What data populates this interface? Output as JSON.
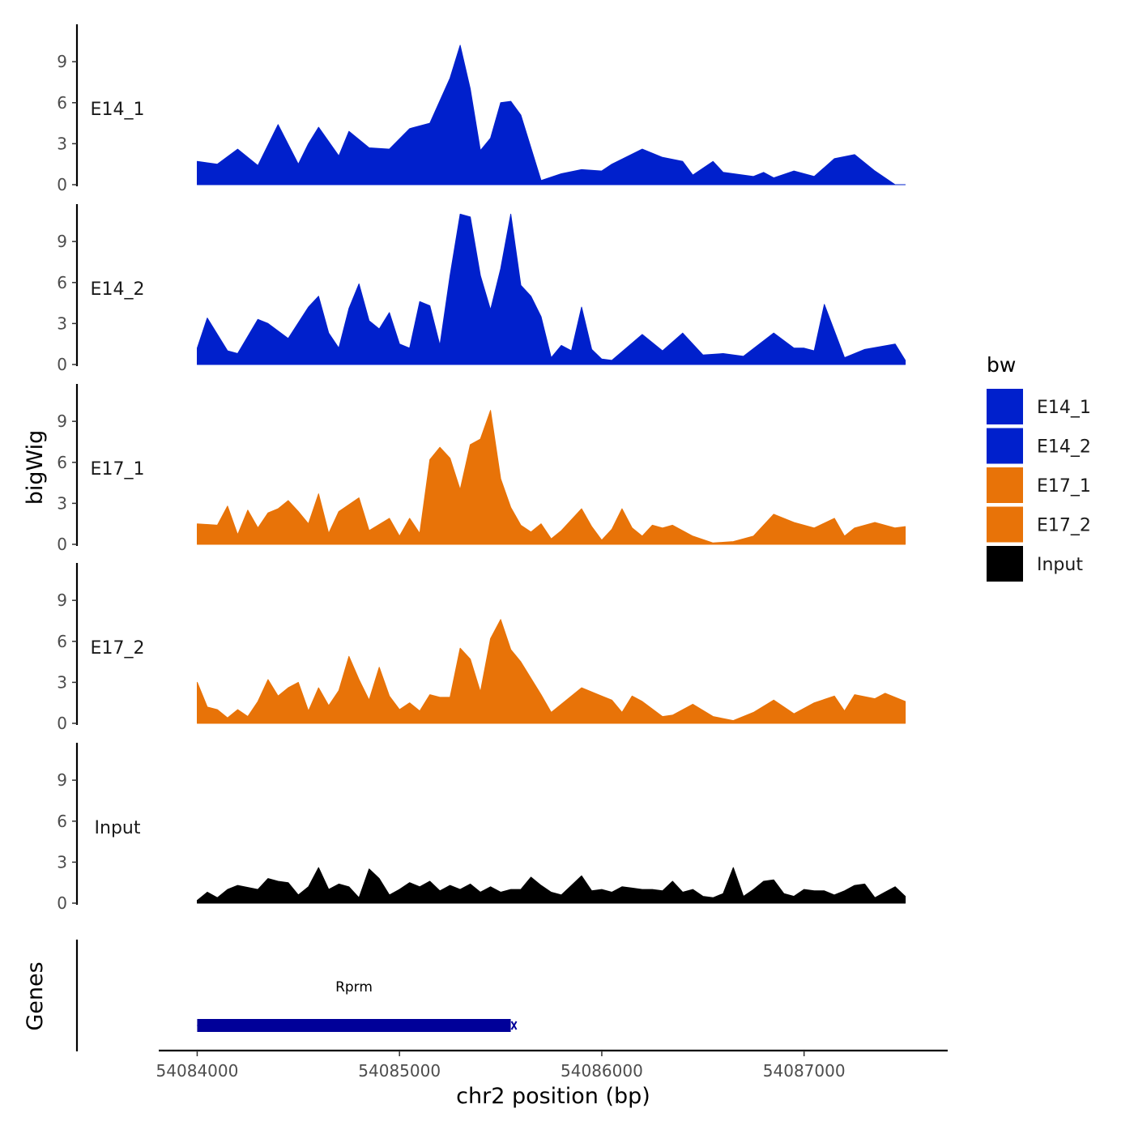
{
  "chart_data": {
    "type": "area",
    "title": "",
    "ylabel": "bigWig",
    "genes_label": "Genes",
    "xlabel": "chr2 position (bp)",
    "xlim": [
      54083810,
      54087710
    ],
    "ylim": [
      0,
      11.5
    ],
    "y_ticks": [
      0,
      3,
      6,
      9
    ],
    "x_ticks": [
      54084000,
      54085000,
      54086000,
      54087000
    ],
    "x_tick_labels": [
      "54084000",
      "54085000",
      "54086000",
      "54087000"
    ],
    "legend": {
      "title": "bw",
      "placement": "right",
      "entries": [
        {
          "label": "E14_1",
          "color": "#0020CC"
        },
        {
          "label": "E14_2",
          "color": "#0020CC"
        },
        {
          "label": "E17_1",
          "color": "#E87308"
        },
        {
          "label": "E17_2",
          "color": "#E87308"
        },
        {
          "label": "Input",
          "color": "#000000"
        }
      ]
    },
    "series": [
      {
        "name": "E14_1",
        "color": "#0020CC",
        "x": [
          54084000,
          54084100,
          54084200,
          54084300,
          54084400,
          54084500,
          54084550,
          54084600,
          54084700,
          54084750,
          54084850,
          54084950,
          54085050,
          54085150,
          54085250,
          54085300,
          54085350,
          54085400,
          54085450,
          54085500,
          54085550,
          54085600,
          54085700,
          54085800,
          54085900,
          54086000,
          54086050,
          54086200,
          54086300,
          54086400,
          54086450,
          54086550,
          54086600,
          54086750,
          54086800,
          54086850,
          54086950,
          54087050,
          54087150,
          54087250,
          54087350,
          54087450,
          54087500
        ],
        "values": [
          1.7,
          1.5,
          2.6,
          1.4,
          4.4,
          1.5,
          3.0,
          4.2,
          2.1,
          3.9,
          2.7,
          2.6,
          4.1,
          4.5,
          7.8,
          10.2,
          7.0,
          2.5,
          3.4,
          6.0,
          6.1,
          5.1,
          0.3,
          0.8,
          1.1,
          1.0,
          1.5,
          2.6,
          2.0,
          1.7,
          0.7,
          1.7,
          0.9,
          0.6,
          0.9,
          0.5,
          1.0,
          0.6,
          1.9,
          2.2,
          1.0,
          0.0,
          0.0
        ]
      },
      {
        "name": "E14_2",
        "color": "#0020CC",
        "x": [
          54084000,
          54084050,
          54084150,
          54084200,
          54084300,
          54084350,
          54084450,
          54084550,
          54084600,
          54084650,
          54084700,
          54084750,
          54084800,
          54084850,
          54084900,
          54084950,
          54085000,
          54085050,
          54085100,
          54085150,
          54085200,
          54085250,
          54085300,
          54085350,
          54085400,
          54085450,
          54085500,
          54085550,
          54085600,
          54085650,
          54085700,
          54085750,
          54085800,
          54085850,
          54085900,
          54085950,
          54086000,
          54086050,
          54086200,
          54086300,
          54086400,
          54086500,
          54086600,
          54086700,
          54086850,
          54086950,
          54087000,
          54087050,
          54087100,
          54087200,
          54087300,
          54087450,
          54087500
        ],
        "values": [
          1.2,
          3.4,
          1.0,
          0.8,
          3.3,
          3.0,
          1.9,
          4.2,
          5.0,
          2.3,
          1.2,
          4.1,
          5.9,
          3.2,
          2.6,
          3.8,
          1.5,
          1.2,
          4.6,
          4.3,
          1.4,
          6.5,
          11.0,
          10.8,
          6.5,
          4.0,
          7.0,
          11.0,
          5.8,
          5.0,
          3.5,
          0.5,
          1.4,
          1.0,
          4.2,
          1.1,
          0.4,
          0.3,
          2.2,
          1.0,
          2.3,
          0.7,
          0.8,
          0.6,
          2.3,
          1.2,
          1.2,
          1.0,
          4.4,
          0.5,
          1.1,
          1.5,
          0.3
        ]
      },
      {
        "name": "E17_1",
        "color": "#E87308",
        "x": [
          54084000,
          54084100,
          54084150,
          54084200,
          54084250,
          54084300,
          54084350,
          54084400,
          54084450,
          54084500,
          54084550,
          54084600,
          54084650,
          54084700,
          54084800,
          54084850,
          54084950,
          54085000,
          54085050,
          54085100,
          54085150,
          54085200,
          54085250,
          54085300,
          54085350,
          54085400,
          54085450,
          54085500,
          54085550,
          54085600,
          54085650,
          54085700,
          54085750,
          54085800,
          54085900,
          54085950,
          54086000,
          54086050,
          54086100,
          54086150,
          54086200,
          54086250,
          54086300,
          54086350,
          54086450,
          54086550,
          54086650,
          54086750,
          54086850,
          54086950,
          54087050,
          54087150,
          54087200,
          54087250,
          54087350,
          54087450,
          54087500
        ],
        "values": [
          1.5,
          1.4,
          2.8,
          0.7,
          2.5,
          1.2,
          2.3,
          2.6,
          3.2,
          2.4,
          1.5,
          3.7,
          0.8,
          2.4,
          3.4,
          1.0,
          1.9,
          0.6,
          1.9,
          0.8,
          6.2,
          7.1,
          6.3,
          4.0,
          7.3,
          7.7,
          9.8,
          4.8,
          2.7,
          1.4,
          0.9,
          1.5,
          0.4,
          1.0,
          2.6,
          1.3,
          0.3,
          1.1,
          2.6,
          1.2,
          0.6,
          1.4,
          1.2,
          1.4,
          0.6,
          0.1,
          0.2,
          0.6,
          2.2,
          1.6,
          1.2,
          1.9,
          0.6,
          1.2,
          1.6,
          1.2,
          1.3
        ]
      },
      {
        "name": "E17_2",
        "color": "#E87308",
        "x": [
          54084000,
          54084050,
          54084100,
          54084150,
          54084200,
          54084250,
          54084300,
          54084350,
          54084400,
          54084450,
          54084500,
          54084550,
          54084600,
          54084650,
          54084700,
          54084750,
          54084800,
          54084850,
          54084900,
          54084950,
          54085000,
          54085050,
          54085100,
          54085150,
          54085200,
          54085250,
          54085300,
          54085350,
          54085400,
          54085450,
          54085500,
          54085550,
          54085600,
          54085700,
          54085750,
          54085800,
          54085900,
          54086000,
          54086050,
          54086100,
          54086150,
          54086200,
          54086300,
          54086350,
          54086450,
          54086550,
          54086650,
          54086750,
          54086850,
          54086950,
          54087050,
          54087150,
          54087200,
          54087250,
          54087350,
          54087400,
          54087500
        ],
        "values": [
          3.0,
          1.2,
          1.0,
          0.4,
          1.0,
          0.5,
          1.6,
          3.2,
          2.0,
          2.6,
          3.0,
          0.9,
          2.6,
          1.3,
          2.4,
          4.9,
          3.2,
          1.7,
          4.1,
          2.0,
          1.0,
          1.5,
          0.9,
          2.1,
          1.9,
          1.9,
          5.5,
          4.7,
          2.3,
          6.2,
          7.6,
          5.4,
          4.5,
          2.1,
          0.8,
          1.4,
          2.6,
          2.0,
          1.7,
          0.8,
          2.0,
          1.6,
          0.5,
          0.6,
          1.4,
          0.5,
          0.2,
          0.8,
          1.7,
          0.7,
          1.5,
          2.0,
          0.9,
          2.1,
          1.8,
          2.2,
          1.6
        ]
      },
      {
        "name": "Input",
        "color": "#000000",
        "x": [
          54084000,
          54084050,
          54084100,
          54084150,
          54084200,
          54084300,
          54084350,
          54084400,
          54084450,
          54084500,
          54084550,
          54084600,
          54084650,
          54084700,
          54084750,
          54084800,
          54084850,
          54084900,
          54084950,
          54085000,
          54085050,
          54085100,
          54085150,
          54085200,
          54085250,
          54085300,
          54085350,
          54085400,
          54085450,
          54085500,
          54085550,
          54085600,
          54085650,
          54085700,
          54085750,
          54085800,
          54085850,
          54085900,
          54085950,
          54086000,
          54086050,
          54086100,
          54086150,
          54086200,
          54086250,
          54086300,
          54086350,
          54086400,
          54086450,
          54086500,
          54086550,
          54086600,
          54086650,
          54086700,
          54086750,
          54086800,
          54086850,
          54086900,
          54086950,
          54087000,
          54087050,
          54087100,
          54087150,
          54087200,
          54087250,
          54087300,
          54087350,
          54087400,
          54087450,
          54087500
        ],
        "values": [
          0.2,
          0.8,
          0.4,
          1.0,
          1.3,
          1.0,
          1.8,
          1.6,
          1.5,
          0.6,
          1.2,
          2.6,
          1.0,
          1.4,
          1.2,
          0.4,
          2.5,
          1.8,
          0.6,
          1.0,
          1.5,
          1.2,
          1.6,
          0.9,
          1.3,
          1.0,
          1.4,
          0.8,
          1.2,
          0.8,
          1.0,
          1.0,
          1.9,
          1.3,
          0.8,
          0.6,
          1.3,
          2.0,
          0.9,
          1.0,
          0.8,
          1.2,
          1.1,
          1.0,
          1.0,
          0.9,
          1.6,
          0.8,
          1.0,
          0.5,
          0.4,
          0.7,
          2.6,
          0.5,
          1.0,
          1.6,
          1.7,
          0.7,
          0.5,
          1.0,
          0.9,
          0.9,
          0.6,
          0.9,
          1.3,
          1.4,
          0.4,
          0.8,
          1.2,
          0.5
        ]
      }
    ],
    "gene_track": {
      "genes": [
        {
          "name": "Rprm",
          "start": 54084000,
          "end": 54085550,
          "strand": "-",
          "color": "#000099"
        }
      ]
    }
  }
}
